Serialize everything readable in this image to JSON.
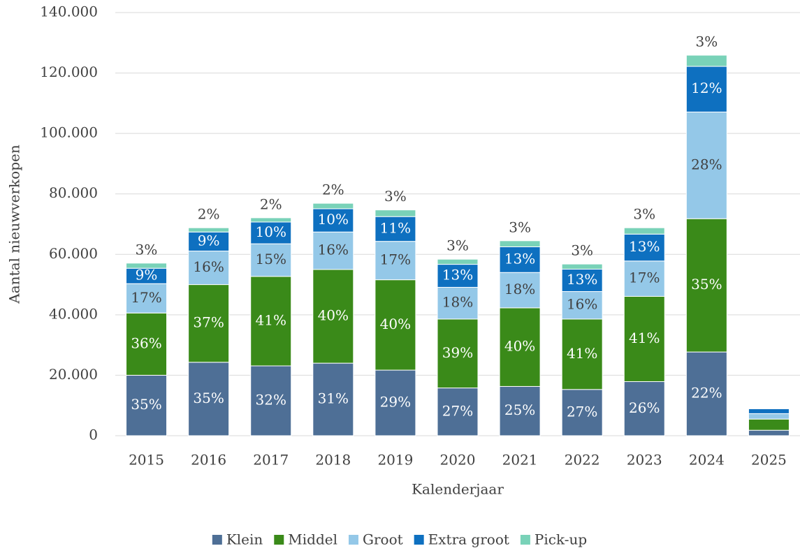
{
  "chart_data": {
    "type": "stacked_bar",
    "x_label": "Kalenderjaar",
    "y_label": "Aantal nieuwverkopen",
    "categories": [
      "2015",
      "2016",
      "2017",
      "2018",
      "2019",
      "2020",
      "2021",
      "2022",
      "2023",
      "2024",
      "2025"
    ],
    "ylim": [
      0,
      140000
    ],
    "yticks": [
      0,
      {
        "value": 20000,
        "label": "20.000"
      },
      {
        "value": 40000,
        "label": "40.000"
      },
      {
        "value": 60000,
        "label": "60.000"
      },
      {
        "value": 80000,
        "label": "80.000"
      },
      {
        "value": 100000,
        "label": "100.000"
      },
      {
        "value": 120000,
        "label": "120.000"
      },
      {
        "value": 140000,
        "label": "140.000"
      }
    ],
    "grid": true,
    "legend": "bottom",
    "series": [
      {
        "name": "Klein",
        "color": "#4e6f96",
        "label_color": "#ffffff",
        "values": [
          20000,
          24300,
          23100,
          24000,
          21700,
          15800,
          16300,
          15300,
          17900,
          27700,
          1800
        ],
        "value_labels": [
          "35%",
          "35%",
          "32%",
          "31%",
          "29%",
          "27%",
          "25%",
          "27%",
          "26%",
          "22%",
          null
        ]
      },
      {
        "name": "Middel",
        "color": "#3a8a19",
        "label_color": "#ffffff",
        "values": [
          20600,
          25700,
          29600,
          31000,
          29900,
          22800,
          26000,
          23300,
          28200,
          44100,
          3700
        ],
        "value_labels": [
          "36%",
          "37%",
          "41%",
          "40%",
          "40%",
          "39%",
          "40%",
          "41%",
          "41%",
          "35%",
          null
        ]
      },
      {
        "name": "Groot",
        "color": "#94c8e8",
        "label_color": "#404040",
        "values": [
          9700,
          11100,
          10800,
          12400,
          12700,
          10500,
          11700,
          9100,
          11700,
          35300,
          1800
        ],
        "value_labels": [
          "17%",
          "16%",
          "15%",
          "16%",
          "17%",
          "18%",
          "18%",
          "16%",
          "17%",
          "28%",
          null
        ]
      },
      {
        "name": "Extra groot",
        "color": "#0e70c0",
        "label_color": "#ffffff",
        "values": [
          5100,
          6300,
          7200,
          7700,
          8200,
          7600,
          8500,
          7400,
          8900,
          15100,
          1600
        ],
        "value_labels": [
          "9%",
          "9%",
          "10%",
          "10%",
          "11%",
          "13%",
          "13%",
          "13%",
          "13%",
          "12%",
          null
        ]
      },
      {
        "name": "Pick-up",
        "color": "#79d2b8",
        "label_color": "#404040",
        "label_position": "above",
        "values": [
          1700,
          1400,
          1400,
          1800,
          2200,
          1700,
          2000,
          1700,
          2100,
          3700,
          200
        ],
        "value_labels": [
          "3%",
          "2%",
          "2%",
          "2%",
          "3%",
          "3%",
          "3%",
          "3%",
          "3%",
          "3%",
          null
        ]
      }
    ]
  }
}
